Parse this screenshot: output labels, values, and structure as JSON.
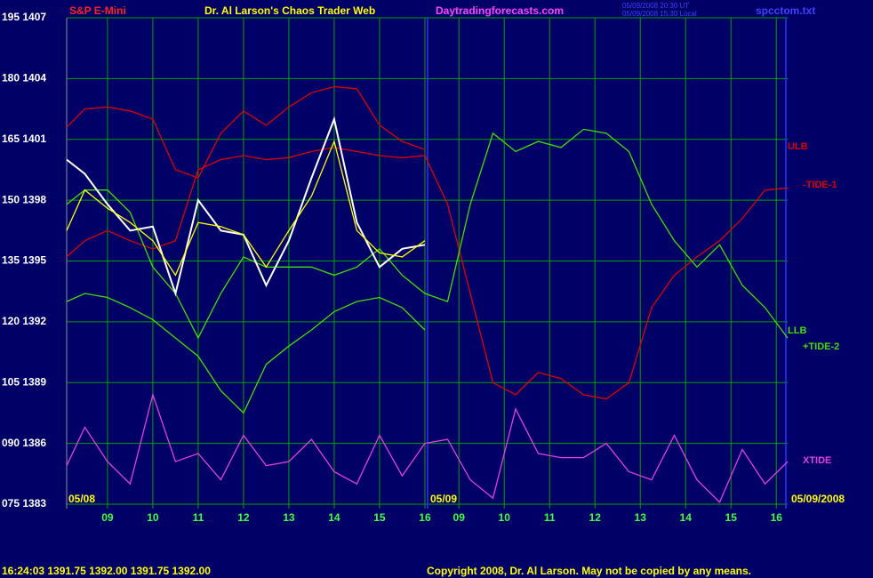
{
  "chart_data": {
    "type": "line",
    "symbol": "S&P E-Mini",
    "title": "Dr. Al Larson's Chaos Trader Web",
    "website": "Daytradingforecasts.com",
    "timestamps": [
      "05/09/2008 20:30 UT",
      "05/09/2008 15:30 Local"
    ],
    "filename": "spcctom.txt",
    "date_labels": [
      "05/08",
      "05/09",
      "05/09/2008"
    ],
    "quote": "16:24:03  1391.75 1392.00 1391.75 1392.00",
    "copyright": "Copyright 2008, Dr. Al Larson. May not be copied by any means.",
    "xlim": [
      8.1,
      24
    ],
    "ylim": [
      1383,
      1407
    ],
    "xticks": [
      {
        "value": 9,
        "label": "09"
      },
      10,
      11,
      12,
      13,
      14,
      15,
      16,
      {
        "value": 16.75,
        "label": "09"
      },
      {
        "value": 17.75,
        "label": "10"
      },
      {
        "value": 18.75,
        "label": "11"
      },
      {
        "value": 19.75,
        "label": "12"
      },
      {
        "value": 20.75,
        "label": "13"
      },
      {
        "value": 21.75,
        "label": "14"
      },
      {
        "value": 22.75,
        "label": "15"
      },
      {
        "value": 23.75,
        "label": "16"
      }
    ],
    "yticks": [
      {
        "value": 1407,
        "label": "195 1407"
      },
      {
        "value": 1404,
        "label": "180 1404"
      },
      {
        "value": 1401,
        "label": "165 1401"
      },
      {
        "value": 1398,
        "label": "150 1398"
      },
      {
        "value": 1395,
        "label": "135 1395"
      },
      {
        "value": 1392,
        "label": "120 1392"
      },
      {
        "value": 1389,
        "label": "105 1389"
      },
      {
        "value": 1386,
        "label": "090 1386"
      },
      {
        "value": 1383,
        "label": "075 1383"
      }
    ],
    "grid": true,
    "grid_color": "#00a000",
    "x": [
      8.1,
      8.5,
      9,
      9.5,
      10,
      10.5,
      11,
      11.5,
      12,
      12.5,
      13,
      13.5,
      14,
      14.5,
      15,
      15.5,
      16,
      16.5,
      17,
      17.5,
      18,
      18.5,
      19,
      19.5,
      20,
      20.5,
      21,
      21.5,
      22,
      22.5,
      23,
      23.5,
      24
    ],
    "series": [
      {
        "name": "ULB",
        "color": "#e00000",
        "values": [
          1401.6,
          1402.5,
          1402.6,
          1402.4,
          1402.0,
          1399.5,
          1399.1,
          1401.3,
          1402.4,
          1401.7,
          1402.6,
          1403.3,
          1403.6,
          1403.5,
          1401.7,
          1400.9,
          1400.5,
          null,
          null,
          null,
          null,
          null,
          null,
          null,
          null,
          null,
          null,
          null,
          null,
          null,
          null,
          null,
          null
        ]
      },
      {
        "name": "-TIDE-1",
        "color": "#e00000",
        "values": [
          1395.2,
          1396.0,
          1396.5,
          1396.0,
          1395.6,
          1396.0,
          1399.5,
          1400.0,
          1400.2,
          1400.0,
          1400.1,
          1400.4,
          1400.6,
          1400.4,
          1400.2,
          1400.1,
          1400.2,
          1397.8,
          1393.4,
          1389.0,
          1388.4,
          1389.5,
          1389.2,
          1388.4,
          1388.2,
          1389.0,
          1392.7,
          1394.3,
          1395.2,
          1396.0,
          1397.1,
          1398.5,
          1398.6
        ]
      },
      {
        "name": "LLB",
        "color": "#40e000",
        "values": [
          1393.0,
          1393.4,
          1393.2,
          1392.7,
          1392.1,
          1391.2,
          1390.3,
          1388.6,
          1387.5,
          1389.9,
          1390.8,
          1391.6,
          1392.5,
          1393.0,
          1393.2,
          1392.7,
          1391.6,
          null,
          null,
          null,
          null,
          null,
          null,
          null,
          null,
          null,
          null,
          null,
          null,
          null,
          null,
          null,
          null
        ]
      },
      {
        "name": "+TIDE-2",
        "color": "#40e000",
        "values": [
          1397.8,
          1398.5,
          1398.5,
          1397.4,
          1394.7,
          1393.4,
          1391.2,
          1393.4,
          1395.2,
          1394.7,
          1394.7,
          1394.7,
          1394.3,
          1394.7,
          1395.6,
          1394.3,
          1393.4,
          1393.0,
          1397.8,
          1401.3,
          1400.4,
          1400.9,
          1400.6,
          1401.5,
          1401.3,
          1400.4,
          1397.8,
          1396.0,
          1394.7,
          1395.8,
          1393.8,
          1392.7,
          1391.2
        ]
      },
      {
        "name": "XTIDE",
        "color": "#e040e0",
        "values": [
          1384.9,
          1386.8,
          1385.1,
          1384.0,
          1388.4,
          1385.1,
          1385.5,
          1384.2,
          1386.4,
          1384.9,
          1385.1,
          1386.2,
          1384.6,
          1384.0,
          1386.4,
          1384.4,
          1386.0,
          1386.2,
          1384.2,
          1383.3,
          1387.7,
          1385.5,
          1385.3,
          1385.3,
          1386.0,
          1384.6,
          1384.2,
          1386.4,
          1384.2,
          1383.1,
          1385.7,
          1384.0,
          1385.1
        ]
      },
      {
        "color": "#ffffff",
        "values": [
          1400.0,
          1399.3,
          1397.8,
          1396.5,
          1396.7,
          1393.4,
          1398.0,
          1396.5,
          1396.3,
          1393.8,
          1396.0,
          1399.1,
          1402.0,
          1396.9,
          1394.7,
          1395.6,
          1395.8,
          null,
          null,
          null,
          null,
          null,
          null,
          null,
          null,
          null,
          null,
          null,
          null,
          null,
          null,
          null,
          null
        ]
      },
      {
        "color": "#ffff00",
        "values": [
          1396.5,
          1398.5,
          1397.6,
          1396.9,
          1396.0,
          1394.3,
          1396.9,
          1396.7,
          1396.3,
          1394.7,
          1396.5,
          1398.2,
          1400.9,
          1396.5,
          1395.4,
          1395.2,
          1396.0,
          null,
          null,
          null,
          null,
          null,
          null,
          null,
          null,
          null,
          null,
          null,
          null,
          null,
          null,
          null,
          null
        ]
      }
    ]
  }
}
